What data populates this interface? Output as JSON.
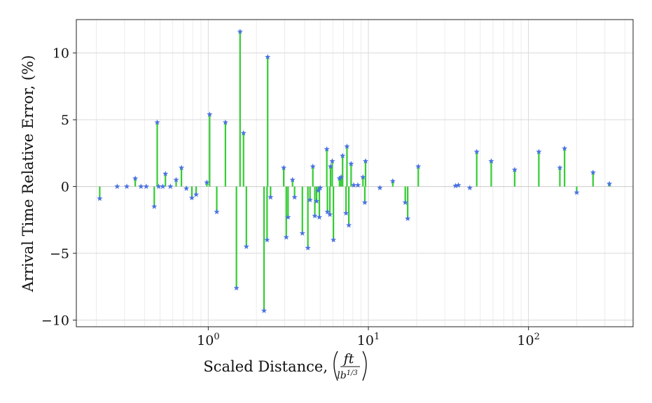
{
  "chart_data": {
    "type": "stem",
    "xlabel": "Scaled Distance, (ft / lb^1/3)",
    "xlabel_text": "Scaled Distance,",
    "xlabel_unit_num": "ft",
    "xlabel_unit_den": "lb",
    "xlabel_unit_den_exp": "1/3",
    "ylabel": "Arrival Time Relative Error, (%)",
    "xscale": "log",
    "xlim": [
      0.15,
      450
    ],
    "ylim": [
      -10.5,
      12.5
    ],
    "grid": true,
    "x_ticks": [
      {
        "value": 1,
        "base": "10",
        "exp": "0"
      },
      {
        "value": 10,
        "base": "10",
        "exp": "1"
      },
      {
        "value": 100,
        "base": "10",
        "exp": "2"
      }
    ],
    "y_ticks": [
      {
        "value": 10,
        "label": "10"
      },
      {
        "value": 5,
        "label": "5"
      },
      {
        "value": 0,
        "label": "0"
      },
      {
        "value": -5,
        "label": "−5"
      },
      {
        "value": -10,
        "label": "−10"
      }
    ],
    "points": [
      [
        0.21,
        -0.9
      ],
      [
        0.27,
        0.0
      ],
      [
        0.31,
        0.0
      ],
      [
        0.35,
        0.6
      ],
      [
        0.38,
        0.0
      ],
      [
        0.41,
        0.0
      ],
      [
        0.46,
        -1.5
      ],
      [
        0.48,
        4.8
      ],
      [
        0.49,
        0.0
      ],
      [
        0.52,
        0.0
      ],
      [
        0.54,
        0.95
      ],
      [
        0.58,
        0.0
      ],
      [
        0.63,
        0.5
      ],
      [
        0.68,
        1.4
      ],
      [
        0.73,
        -0.15
      ],
      [
        0.79,
        -0.85
      ],
      [
        0.84,
        -0.6
      ],
      [
        0.98,
        0.3
      ],
      [
        1.02,
        5.4
      ],
      [
        1.13,
        -1.9
      ],
      [
        1.28,
        4.8
      ],
      [
        1.5,
        -7.6
      ],
      [
        1.58,
        11.6
      ],
      [
        1.66,
        4.0
      ],
      [
        1.73,
        -4.5
      ],
      [
        2.23,
        -9.3
      ],
      [
        2.33,
        -4.0
      ],
      [
        2.35,
        9.7
      ],
      [
        2.45,
        -0.8
      ],
      [
        2.96,
        1.4
      ],
      [
        3.07,
        -3.8
      ],
      [
        3.15,
        -2.3
      ],
      [
        3.36,
        0.5
      ],
      [
        3.46,
        -0.8
      ],
      [
        3.87,
        -3.5
      ],
      [
        4.19,
        -4.6
      ],
      [
        4.32,
        -1.0
      ],
      [
        4.5,
        1.5
      ],
      [
        4.63,
        -2.2
      ],
      [
        4.75,
        -1.1
      ],
      [
        4.87,
        -0.3
      ],
      [
        4.94,
        -2.3
      ],
      [
        5.0,
        -0.1
      ],
      [
        5.5,
        2.8
      ],
      [
        5.55,
        -1.9
      ],
      [
        5.75,
        -2.1
      ],
      [
        5.8,
        1.5
      ],
      [
        5.95,
        1.9
      ],
      [
        6.05,
        -4.0
      ],
      [
        6.6,
        0.6
      ],
      [
        6.75,
        0.7
      ],
      [
        6.9,
        2.3
      ],
      [
        7.25,
        -2.0
      ],
      [
        7.35,
        3.0
      ],
      [
        7.55,
        -2.9
      ],
      [
        7.8,
        1.7
      ],
      [
        8.1,
        0.1
      ],
      [
        8.6,
        0.1
      ],
      [
        9.25,
        0.7
      ],
      [
        9.5,
        -1.2
      ],
      [
        9.6,
        1.9
      ],
      [
        11.8,
        -0.1
      ],
      [
        14.2,
        0.4
      ],
      [
        17.0,
        -1.2
      ],
      [
        17.6,
        -2.4
      ],
      [
        20.5,
        1.5
      ],
      [
        35.0,
        0.05
      ],
      [
        36.5,
        0.1
      ],
      [
        43.0,
        -0.1
      ],
      [
        47.5,
        2.6
      ],
      [
        58.5,
        1.9
      ],
      [
        82.0,
        1.25
      ],
      [
        116.0,
        2.6
      ],
      [
        157.0,
        1.4
      ],
      [
        168.0,
        2.85
      ],
      [
        200.0,
        -0.45
      ],
      [
        253.0,
        1.05
      ],
      [
        320.0,
        0.2
      ]
    ]
  }
}
